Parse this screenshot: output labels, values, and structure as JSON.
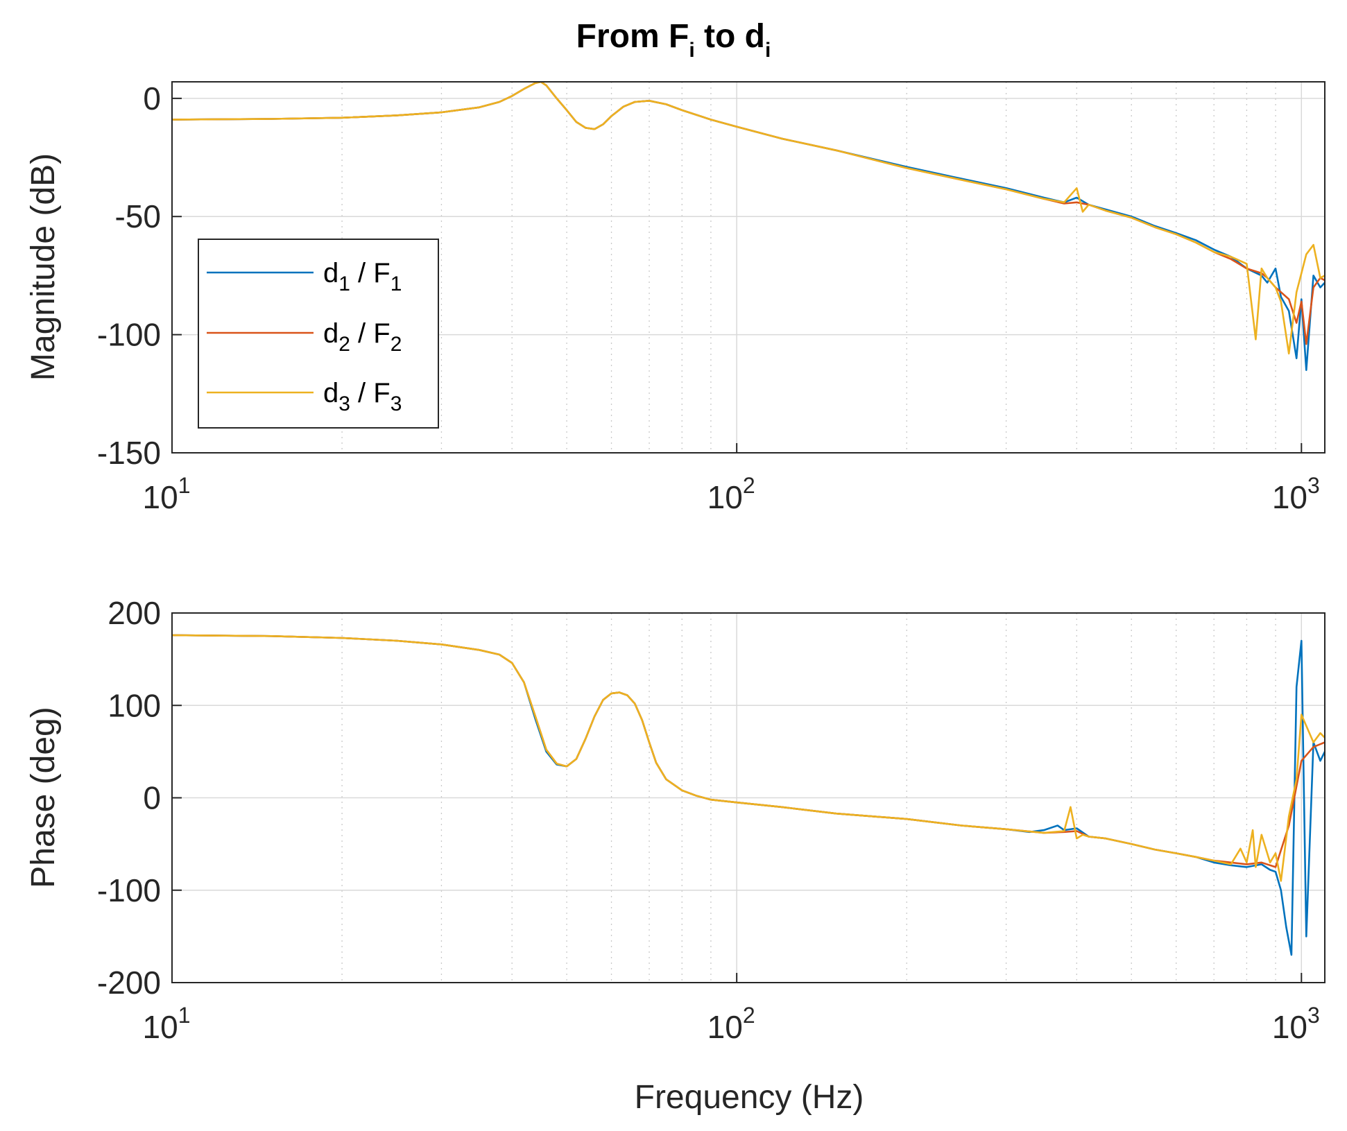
{
  "title": {
    "main": "From F",
    "sub_i": "i",
    "mid": " to d",
    "sub_i2": "i"
  },
  "colors": {
    "d1_F1": "#0072BD",
    "d2_F2": "#D95319",
    "d3_F3": "#EDB120"
  },
  "legend": [
    {
      "pre": "d",
      "sub": "1",
      "mid": " / F",
      "sub2": "1"
    },
    {
      "pre": "d",
      "sub": "2",
      "mid": " / F",
      "sub2": "2"
    },
    {
      "pre": "d",
      "sub": "3",
      "mid": " / F",
      "sub2": "3"
    }
  ],
  "chart_data": [
    {
      "type": "line",
      "panel": "magnitude",
      "title": "From Fi to di",
      "xlabel": "",
      "ylabel": "Magnitude (dB)",
      "xscale": "log",
      "xlim": [
        10,
        1100
      ],
      "ylim": [
        -150,
        7
      ],
      "yticks": [
        0,
        -50,
        -100,
        -150
      ],
      "ytick_labels": [
        "0",
        "-50",
        "-100",
        "-150"
      ],
      "xtick_labels": [
        {
          "base": "10",
          "exp": "1"
        },
        {
          "base": "10",
          "exp": "2"
        },
        {
          "base": "10",
          "exp": "3"
        }
      ],
      "grid": true,
      "legend_position": "left",
      "series": [
        {
          "name": "d1 / F1",
          "x": [
            10,
            15,
            20,
            25,
            30,
            35,
            38,
            40,
            42,
            44,
            45,
            46,
            48,
            50,
            52,
            54,
            56,
            58,
            60,
            63,
            66,
            70,
            75,
            80,
            90,
            100,
            120,
            150,
            200,
            250,
            300,
            350,
            380,
            400,
            420,
            450,
            500,
            550,
            600,
            650,
            700,
            750,
            800,
            850,
            870,
            900,
            920,
            950,
            980,
            1000,
            1020,
            1050,
            1080,
            1100
          ],
          "y": [
            -9,
            -8.7,
            -8.2,
            -7.2,
            -5.9,
            -3.8,
            -1.5,
            1,
            4,
            6.5,
            7,
            5.5,
            0,
            -5,
            -10,
            -12.5,
            -13,
            -11,
            -7.5,
            -3.5,
            -1.5,
            -1,
            -2.5,
            -5,
            -9,
            -12,
            -17,
            -22,
            -29,
            -34,
            -38,
            -42,
            -44,
            -42,
            -45,
            -47,
            -50,
            -54,
            -57,
            -60,
            -64,
            -67,
            -72,
            -75,
            -78,
            -72,
            -84,
            -90,
            -110,
            -85,
            -115,
            -75,
            -80,
            -78
          ]
        },
        {
          "name": "d2 / F2",
          "x": [
            10,
            15,
            20,
            25,
            30,
            35,
            38,
            40,
            42,
            44,
            45,
            46,
            48,
            50,
            52,
            54,
            56,
            58,
            60,
            63,
            66,
            70,
            75,
            80,
            90,
            100,
            120,
            150,
            200,
            250,
            300,
            350,
            380,
            400,
            420,
            450,
            500,
            550,
            600,
            650,
            700,
            750,
            800,
            850,
            870,
            900,
            920,
            950,
            980,
            1000,
            1020,
            1050,
            1080,
            1100
          ],
          "y": [
            -9,
            -8.7,
            -8.2,
            -7.2,
            -5.9,
            -3.8,
            -1.5,
            1,
            4,
            6.5,
            7,
            5.5,
            0,
            -5,
            -10,
            -12.5,
            -13,
            -11,
            -7.5,
            -3.5,
            -1.5,
            -1,
            -2.5,
            -5,
            -9,
            -12,
            -17,
            -22,
            -29.5,
            -34.5,
            -38.5,
            -42.5,
            -44.5,
            -44,
            -45,
            -47.5,
            -50.5,
            -54.5,
            -57.5,
            -61,
            -65,
            -68,
            -72,
            -74,
            -76,
            -80,
            -82,
            -85,
            -95,
            -86,
            -104,
            -80,
            -76,
            -77
          ]
        },
        {
          "name": "d3 / F3",
          "x": [
            10,
            15,
            20,
            25,
            30,
            35,
            38,
            40,
            42,
            44,
            45,
            46,
            48,
            50,
            52,
            54,
            56,
            58,
            60,
            63,
            66,
            70,
            75,
            80,
            90,
            100,
            120,
            150,
            200,
            250,
            300,
            350,
            380,
            400,
            410,
            420,
            450,
            500,
            550,
            600,
            650,
            700,
            750,
            800,
            830,
            850,
            870,
            900,
            920,
            950,
            980,
            1000,
            1020,
            1050,
            1080,
            1100
          ],
          "y": [
            -9,
            -8.7,
            -8.2,
            -7.2,
            -5.9,
            -3.8,
            -1.5,
            1,
            4,
            6.5,
            7,
            5.5,
            0,
            -5,
            -10,
            -12.5,
            -13,
            -11,
            -7.5,
            -3.5,
            -1.5,
            -1,
            -2.5,
            -5,
            -9,
            -12,
            -17,
            -22,
            -29.5,
            -34.5,
            -38.5,
            -42.5,
            -44,
            -38,
            -48,
            -45,
            -47.5,
            -50.5,
            -54.5,
            -57.5,
            -61,
            -65,
            -67,
            -70,
            -102,
            -72,
            -76,
            -80,
            -86,
            -108,
            -82,
            -74,
            -66,
            -62,
            -76,
            -75
          ]
        }
      ]
    },
    {
      "type": "line",
      "panel": "phase",
      "title": "",
      "xlabel": "Frequency (Hz)",
      "ylabel": "Phase (deg)",
      "xscale": "log",
      "xlim": [
        10,
        1100
      ],
      "ylim": [
        -200,
        200
      ],
      "yticks": [
        200,
        100,
        0,
        -100,
        -200
      ],
      "ytick_labels": [
        "200",
        "100",
        "0",
        "-100",
        "-200"
      ],
      "xtick_labels": [
        {
          "base": "10",
          "exp": "1"
        },
        {
          "base": "10",
          "exp": "2"
        },
        {
          "base": "10",
          "exp": "3"
        }
      ],
      "grid": true,
      "series": [
        {
          "name": "d1 / F1",
          "x": [
            10,
            15,
            20,
            25,
            30,
            35,
            38,
            40,
            42,
            44,
            46,
            48,
            50,
            52,
            54,
            56,
            58,
            60,
            62,
            64,
            66,
            68,
            70,
            72,
            75,
            80,
            85,
            90,
            100,
            120,
            150,
            200,
            250,
            300,
            330,
            350,
            370,
            380,
            400,
            420,
            450,
            500,
            550,
            600,
            650,
            700,
            750,
            800,
            850,
            880,
            900,
            920,
            940,
            960,
            980,
            1000,
            1020,
            1050,
            1080,
            1100
          ],
          "y": [
            176,
            175,
            173,
            170,
            166,
            160,
            155,
            146,
            125,
            85,
            50,
            36,
            34,
            42,
            64,
            88,
            106,
            113,
            114,
            111,
            102,
            84,
            60,
            38,
            20,
            8,
            2,
            -2,
            -5,
            -10,
            -17,
            -23,
            -30,
            -34,
            -37,
            -35,
            -30,
            -35,
            -33,
            -42,
            -44,
            -50,
            -56,
            -60,
            -64,
            -70,
            -73,
            -75,
            -72,
            -78,
            -80,
            -100,
            -140,
            -170,
            120,
            170,
            -150,
            60,
            40,
            50
          ]
        },
        {
          "name": "d2 / F2",
          "x": [
            10,
            15,
            20,
            25,
            30,
            35,
            38,
            40,
            42,
            44,
            46,
            48,
            50,
            52,
            54,
            56,
            58,
            60,
            62,
            64,
            66,
            68,
            70,
            72,
            75,
            80,
            85,
            90,
            100,
            120,
            150,
            200,
            250,
            300,
            350,
            380,
            400,
            420,
            450,
            500,
            550,
            600,
            650,
            700,
            750,
            800,
            850,
            900,
            950,
            1000,
            1050,
            1100
          ],
          "y": [
            176,
            175,
            173,
            170,
            166,
            160,
            155,
            146,
            125,
            88,
            52,
            37,
            34,
            42,
            64,
            88,
            106,
            113,
            114,
            111,
            102,
            84,
            60,
            38,
            20,
            8,
            2,
            -2,
            -5,
            -10,
            -17,
            -23,
            -30,
            -34,
            -38,
            -37,
            -36,
            -42,
            -44,
            -50,
            -56,
            -60,
            -64,
            -68,
            -70,
            -72,
            -70,
            -75,
            -30,
            40,
            55,
            60
          ]
        },
        {
          "name": "d3 / F3",
          "x": [
            10,
            15,
            20,
            25,
            30,
            35,
            38,
            40,
            42,
            44,
            46,
            48,
            50,
            52,
            54,
            56,
            58,
            60,
            62,
            64,
            66,
            68,
            70,
            72,
            75,
            80,
            85,
            90,
            100,
            120,
            150,
            200,
            250,
            300,
            350,
            380,
            390,
            400,
            410,
            420,
            450,
            500,
            550,
            600,
            650,
            700,
            750,
            780,
            800,
            820,
            830,
            850,
            880,
            900,
            920,
            950,
            980,
            1000,
            1050,
            1080,
            1100
          ],
          "y": [
            176,
            175,
            173,
            170,
            166,
            160,
            155,
            146,
            125,
            88,
            52,
            37,
            34,
            42,
            64,
            88,
            106,
            113,
            114,
            111,
            102,
            84,
            60,
            38,
            20,
            8,
            2,
            -2,
            -5,
            -10,
            -17,
            -23,
            -30,
            -34,
            -38,
            -36,
            -10,
            -44,
            -40,
            -42,
            -44,
            -50,
            -56,
            -60,
            -64,
            -68,
            -72,
            -55,
            -70,
            -35,
            -75,
            -40,
            -70,
            -60,
            -90,
            -20,
            20,
            90,
            60,
            70,
            65
          ]
        }
      ]
    }
  ]
}
